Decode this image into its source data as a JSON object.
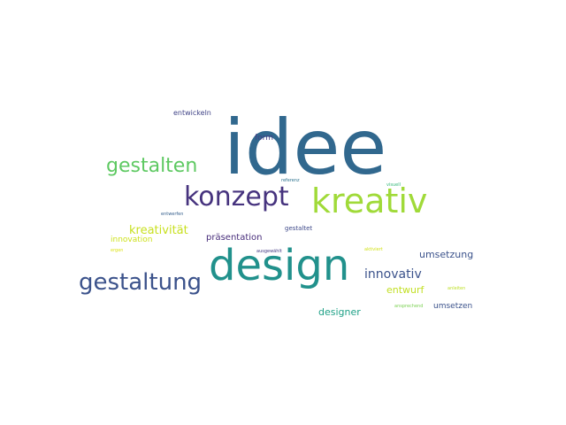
{
  "words": [
    {
      "text": "idee",
      "color": "#31688e"
    },
    {
      "text": "design",
      "color": "#21918c"
    },
    {
      "text": "kreativ",
      "color": "#a0da39"
    },
    {
      "text": "konzept",
      "color": "#46337e"
    },
    {
      "text": "gestaltung",
      "color": "#3b528b"
    },
    {
      "text": "gestalten",
      "color": "#5ec962"
    },
    {
      "text": "innovativ",
      "color": "#3b528b"
    },
    {
      "text": "kreativität",
      "color": "#c8e020"
    },
    {
      "text": "umsetzung",
      "color": "#3b528b"
    },
    {
      "text": "präsentation",
      "color": "#472c7a"
    },
    {
      "text": "entwurf",
      "color": "#c2df23"
    },
    {
      "text": "innovation",
      "color": "#cde11d"
    },
    {
      "text": "designer",
      "color": "#1fa187"
    },
    {
      "text": "umsetzen",
      "color": "#3b528b"
    },
    {
      "text": "form",
      "color": "#433e85"
    },
    {
      "text": "entwickeln",
      "color": "#414487"
    },
    {
      "text": "gestaltet",
      "color": "#3e4989"
    },
    {
      "text": "entwerfen",
      "color": "#355f8d"
    },
    {
      "text": "ansprechend",
      "color": "#7ad151"
    },
    {
      "text": "anleiten",
      "color": "#bddf26"
    },
    {
      "text": "referenz",
      "color": "#2c728e"
    },
    {
      "text": "visuell",
      "color": "#35b779"
    },
    {
      "text": "aktiviert",
      "color": "#d2e21b"
    },
    {
      "text": "ausgewählt",
      "color": "#443983"
    },
    {
      "text": "ergen",
      "color": "#dde318"
    }
  ]
}
